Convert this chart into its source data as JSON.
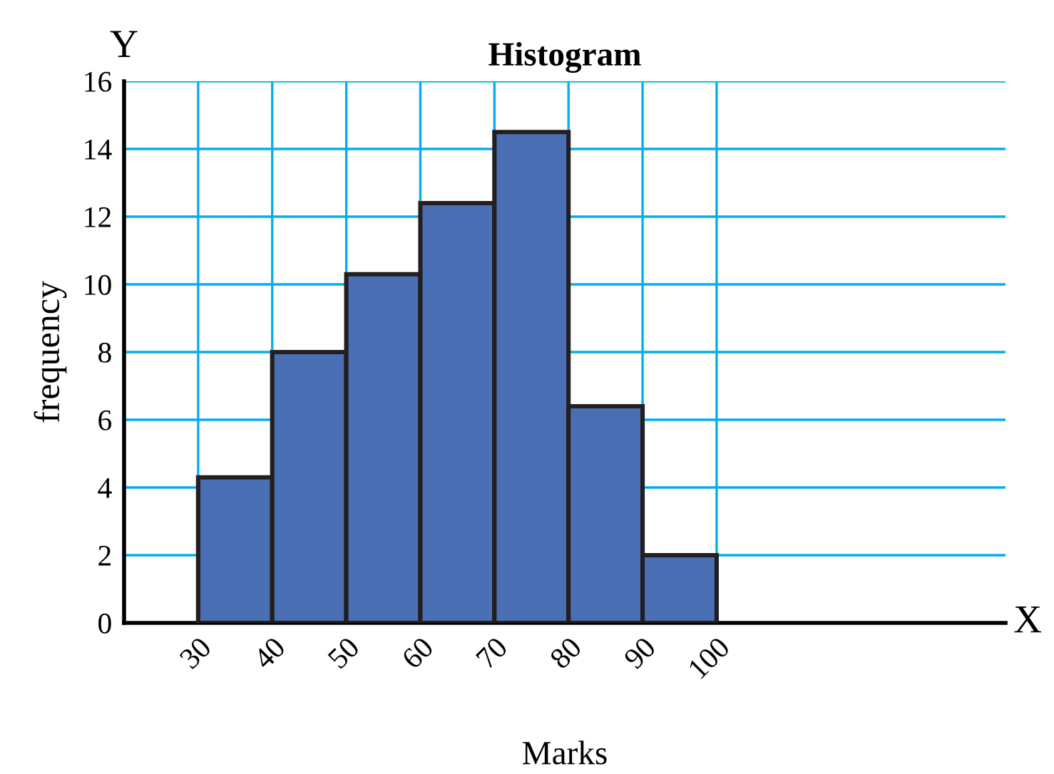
{
  "chart_data": {
    "type": "histogram",
    "title": "Histogram",
    "xlabel": "Marks",
    "ylabel": "frequency",
    "annotations": [
      "X",
      "Y"
    ],
    "bins": [
      30,
      40,
      50,
      60,
      70,
      80,
      90,
      100
    ],
    "values": [
      4.3,
      8,
      10.3,
      12.4,
      14.5,
      6.4,
      2
    ],
    "color": "#4a6fb5",
    "xlim": [
      20,
      139
    ],
    "ylim": [
      0,
      16
    ],
    "xticks": [
      30,
      40,
      50,
      60,
      70,
      80,
      90,
      100
    ],
    "yticks": [
      0,
      2,
      4,
      6,
      8,
      10,
      12,
      14,
      16
    ],
    "grid": true
  }
}
